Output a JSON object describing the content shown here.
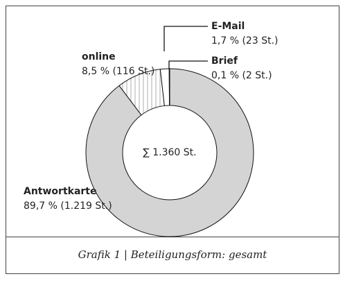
{
  "chart_data": {
    "type": "donut",
    "categories": [
      "Antwortkarte",
      "online",
      "E-Mail",
      "Brief"
    ],
    "values": [
      89.7,
      8.5,
      1.7,
      0.1
    ],
    "value_labels": [
      "89,7 % (1.219 St.)",
      "8,5 % (116 St.)",
      "1,7 % (23 St.)",
      "0,1 % (2 St.)"
    ],
    "colors": [
      "#d4d4d4",
      "#ffffff",
      "#ffffff",
      "#111111"
    ],
    "patterns": [
      null,
      "vertical-lines",
      null,
      null
    ],
    "center_label": "∑ 1.360 St.",
    "caption": "Grafik 1 | Beteiligungsform: gesamt"
  }
}
